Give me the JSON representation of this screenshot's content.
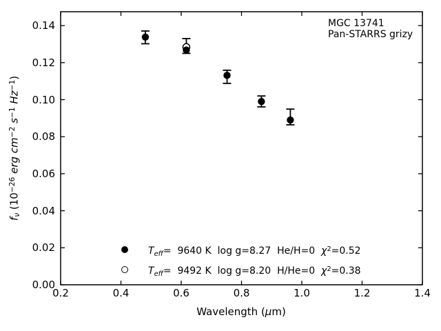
{
  "colors": {
    "foreground": "#000000",
    "background": "#ffffff"
  },
  "chart_data": {
    "type": "scatter",
    "title": "",
    "xlabel": "Wavelength (μm)",
    "ylabel": "fν (10⁻²⁶ erg cm⁻² s⁻¹ Hz⁻¹)",
    "xlabel_rich": [
      {
        "t": "Wavelength (",
        "st": "n"
      },
      {
        "t": "μ",
        "st": "i"
      },
      {
        "t": "m)",
        "st": "n"
      }
    ],
    "ylabel_rich": [
      {
        "t": "f",
        "st": "i"
      },
      {
        "t": "ν",
        "st": "isub"
      },
      {
        "t": " (10",
        "st": "n"
      },
      {
        "t": "−26",
        "st": "sup"
      },
      {
        "t": " erg cm",
        "st": "i"
      },
      {
        "t": "−2",
        "st": "sup"
      },
      {
        "t": " s",
        "st": "i"
      },
      {
        "t": "−1",
        "st": "sup"
      },
      {
        "t": " Hz",
        "st": "i"
      },
      {
        "t": "−1",
        "st": "sup"
      },
      {
        "t": ")",
        "st": "n"
      }
    ],
    "xlim": [
      0.2,
      1.4
    ],
    "ylim": [
      0.0,
      0.1475
    ],
    "grid": false,
    "xticks": {
      "values": [
        0.2,
        0.4,
        0.6,
        0.8,
        1.0,
        1.2,
        1.4
      ],
      "labels": [
        "0.2",
        "0.4",
        "0.6",
        "0.8",
        "1.0",
        "1.2",
        "1.4"
      ]
    },
    "yticks": {
      "values": [
        0.0,
        0.02,
        0.04,
        0.06,
        0.08,
        0.1,
        0.12,
        0.14
      ],
      "labels": [
        "0.00",
        "0.02",
        "0.04",
        "0.06",
        "0.08",
        "0.10",
        "0.12",
        "0.14"
      ]
    },
    "annotation": [
      "MGC 13741",
      "Pan-STARRS grizy"
    ],
    "bands": [
      "g",
      "r",
      "i",
      "z",
      "y"
    ],
    "series": [
      {
        "name": "Teff=  9640 K  log g=8.27  He/H=0  χ²=0.52",
        "marker": "filled-circle",
        "color": "#000000",
        "x": [
          0.481,
          0.617,
          0.752,
          0.866,
          0.962
        ],
        "y": [
          0.1338,
          0.1268,
          0.1131,
          0.099,
          0.089
        ]
      },
      {
        "name": "Teff=  9492 K  log g=8.20  H/He=0  χ²=0.38",
        "marker": "open-circle",
        "color": "#000000",
        "x": [
          0.617
        ],
        "y": [
          0.1284
        ]
      }
    ],
    "error_bars": {
      "x": [
        0.481,
        0.617,
        0.752,
        0.866,
        0.962
      ],
      "y_low": [
        0.1302,
        0.125,
        0.1088,
        0.0961,
        0.0864
      ],
      "y_high": [
        0.1371,
        0.133,
        0.1159,
        0.102,
        0.0949
      ]
    },
    "models": [
      {
        "marker": "filled-circle",
        "teff_k": 9640,
        "log_g": 8.27,
        "composition": "He/H=0",
        "chi2": 0.52
      },
      {
        "marker": "open-circle",
        "teff_k": 9492,
        "log_g": 8.2,
        "composition": "H/He=0",
        "chi2": 0.38
      }
    ],
    "legend_position": "lower-left-inside"
  },
  "legend": {
    "rows": [
      {
        "marker": "filled-circle",
        "segments": [
          {
            "t": "T",
            "st": "i"
          },
          {
            "t": "eff",
            "st": "isub"
          },
          {
            "t": "=  9640 K  log g=8.27  He/H=0  ",
            "st": "n"
          },
          {
            "t": "χ",
            "st": "i"
          },
          {
            "t": "2",
            "st": "sup"
          },
          {
            "t": "=0.52",
            "st": "n"
          }
        ]
      },
      {
        "marker": "open-circle",
        "segments": [
          {
            "t": "T",
            "st": "i"
          },
          {
            "t": "eff",
            "st": "isub"
          },
          {
            "t": "=  9492 K  log g=8.20  H/He=0  ",
            "st": "n"
          },
          {
            "t": "χ",
            "st": "i"
          },
          {
            "t": "2",
            "st": "sup"
          },
          {
            "t": "=0.38",
            "st": "n"
          }
        ]
      }
    ]
  }
}
